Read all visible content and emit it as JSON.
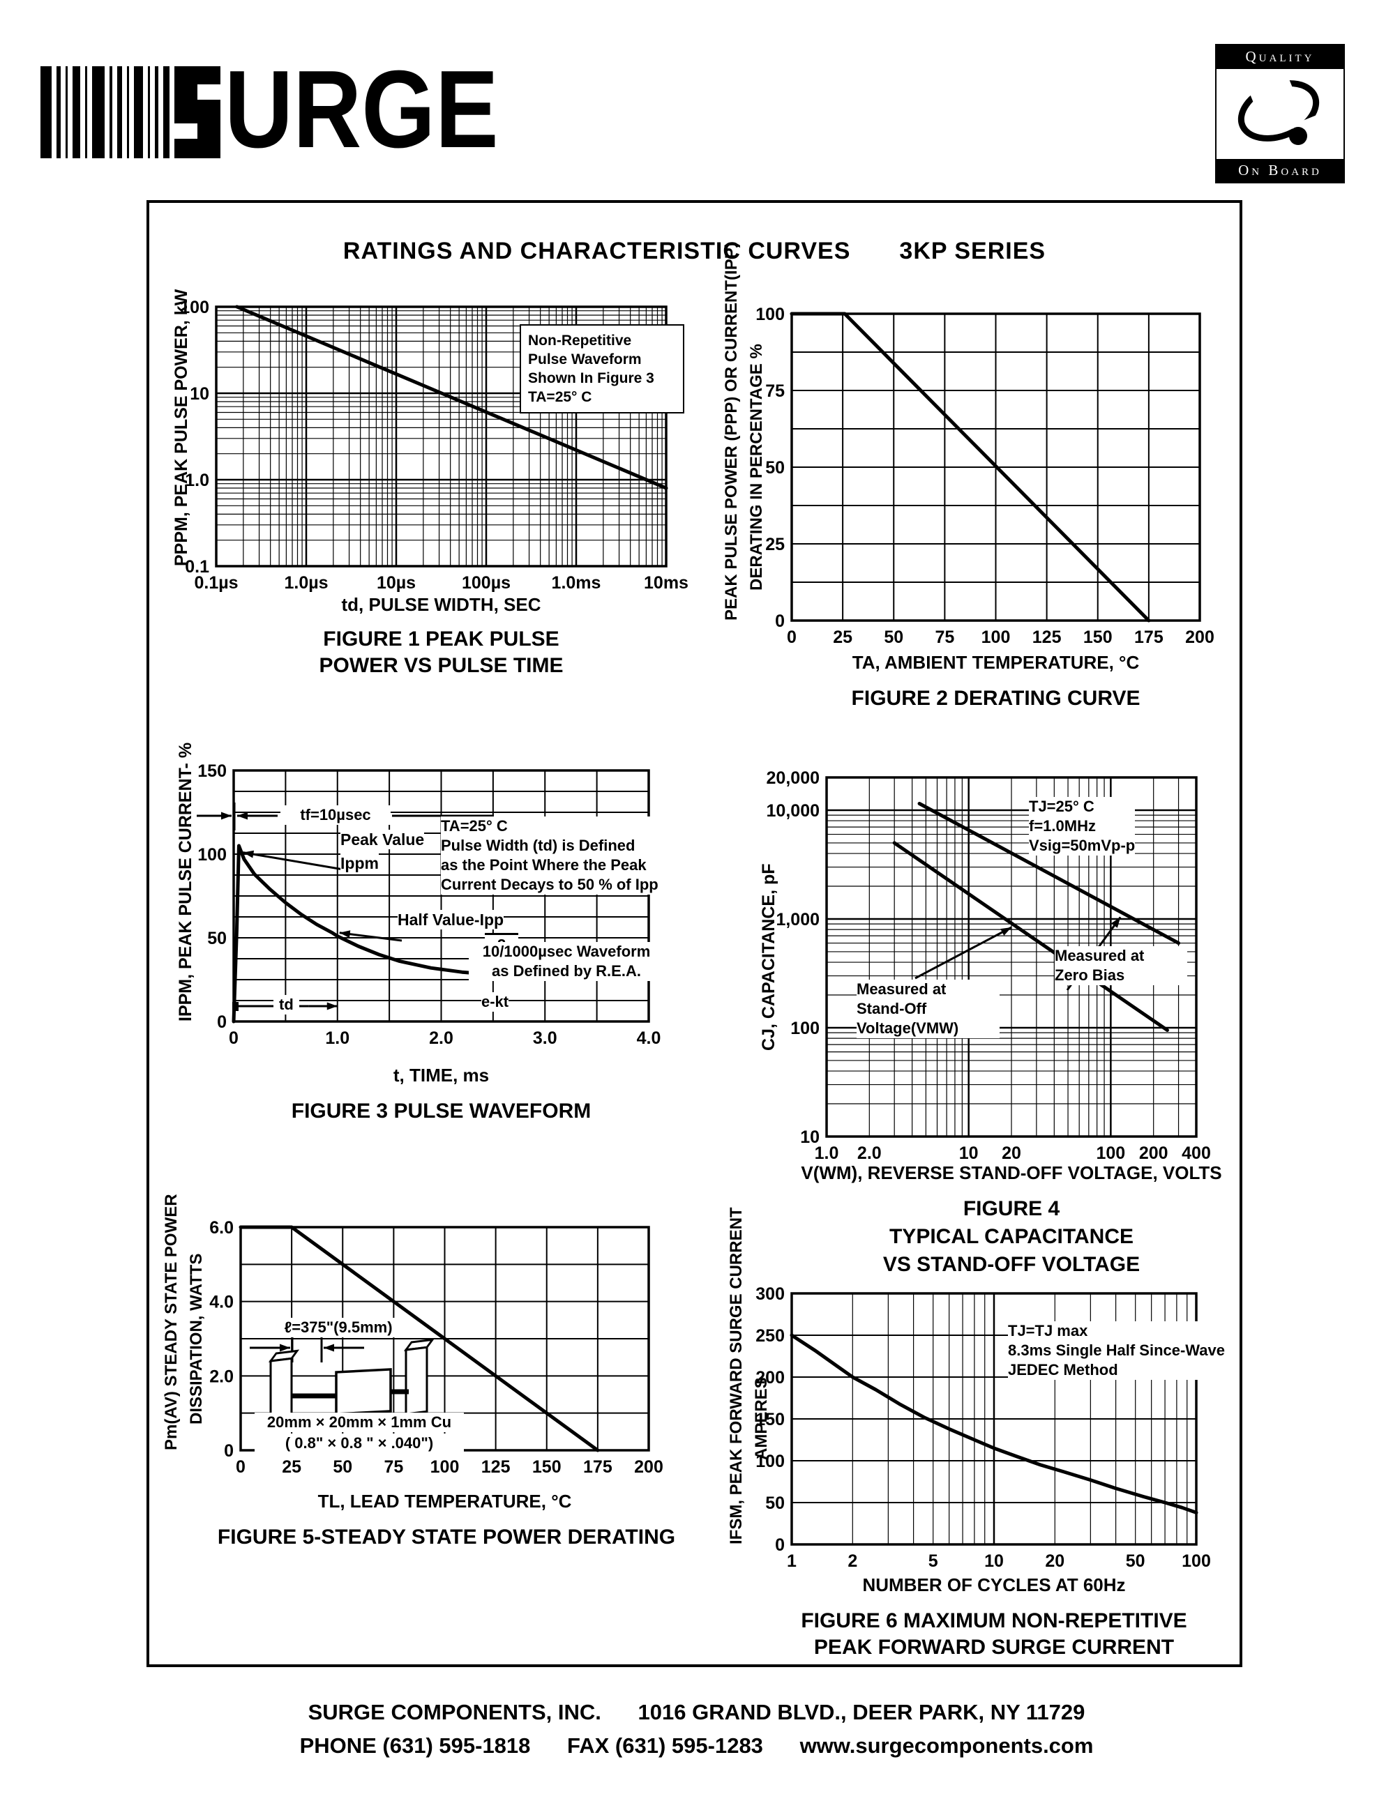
{
  "page": {
    "logo_text": "URGE",
    "quality_logo": {
      "top": "Quality",
      "bottom": "On Board"
    },
    "title": "RATINGS AND CHARACTERISTIC CURVES",
    "series_title": "3KP SERIES",
    "footer": {
      "company": "SURGE COMPONENTS, INC.",
      "address": "1016 GRAND BLVD., DEER PARK, NY  11729",
      "phone": "PHONE (631) 595-1818",
      "fax": "FAX (631) 595-1283",
      "web": "www.surgecomponents.com"
    }
  },
  "chart_data": [
    {
      "id": "figure1",
      "type": "line",
      "captions": [
        "FIGURE 1 PEAK PULSE",
        "POWER VS PULSE TIME"
      ],
      "xlabel": "td, PULSE WIDTH, SEC",
      "ylabel": "PPPM, PEAK PULSE POWER, kW",
      "x_axis": {
        "scale": "log",
        "min": 1e-07,
        "max": 0.01,
        "ticks": [
          {
            "v": 1e-07,
            "label": "0.1µs"
          },
          {
            "v": 1e-06,
            "label": "1.0µs"
          },
          {
            "v": 1e-05,
            "label": "10µs"
          },
          {
            "v": 0.0001,
            "label": "100µs"
          },
          {
            "v": 0.001,
            "label": "1.0ms"
          },
          {
            "v": 0.01,
            "label": "10ms"
          }
        ]
      },
      "y_axis": {
        "scale": "log",
        "min": 0.1,
        "max": 100,
        "ticks": [
          {
            "v": 100,
            "label": "100"
          },
          {
            "v": 10,
            "label": "10"
          },
          {
            "v": 1,
            "label": "1.0"
          },
          {
            "v": 0.1,
            "label": "0.1"
          }
        ]
      },
      "series": [
        {
          "name": "peak pulse power",
          "points": [
            [
              1.7e-07,
              100
            ],
            [
              0.01,
              0.8
            ]
          ]
        }
      ],
      "legend": [
        "Non-Repetitive",
        "Pulse Waveform",
        "Shown In Figure 3",
        "TA=25° C"
      ]
    },
    {
      "id": "figure2",
      "type": "line",
      "captions": [
        "FIGURE 2 DERATING CURVE"
      ],
      "xlabel": "TA, AMBIENT  TEMPERATURE, °C",
      "ylabel_lines": [
        "PEAK PULSE POWER (PPP) OR CURRENT(IPP)",
        "DERATING IN PERCENTAGE %"
      ],
      "x_axis": {
        "scale": "linear",
        "min": 0,
        "max": 200,
        "grid_step": 25,
        "ticks": [
          {
            "v": 0,
            "label": "0"
          },
          {
            "v": 25,
            "label": "25"
          },
          {
            "v": 50,
            "label": "50"
          },
          {
            "v": 75,
            "label": "75"
          },
          {
            "v": 100,
            "label": "100"
          },
          {
            "v": 125,
            "label": "125"
          },
          {
            "v": 150,
            "label": "150"
          },
          {
            "v": 175,
            "label": "175"
          },
          {
            "v": 200,
            "label": "200"
          }
        ]
      },
      "y_axis": {
        "scale": "linear",
        "min": 0,
        "max": 100,
        "grid_step": 12.5,
        "ticks": [
          {
            "v": 0,
            "label": "0"
          },
          {
            "v": 25,
            "label": "25"
          },
          {
            "v": 50,
            "label": "50"
          },
          {
            "v": 75,
            "label": "75"
          },
          {
            "v": 100,
            "label": "100"
          }
        ]
      },
      "series": [
        {
          "name": "derating",
          "points": [
            [
              0,
              100
            ],
            [
              26,
              100
            ],
            [
              175,
              0
            ]
          ]
        }
      ]
    },
    {
      "id": "figure3",
      "type": "line",
      "captions": [
        "FIGURE 3  PULSE WAVEFORM"
      ],
      "xlabel": "t, TIME, ms",
      "ylabel": "IPPM, PEAK PULSE CURRENT- %",
      "x_axis": {
        "scale": "linear",
        "min": 0,
        "max": 4,
        "grid_step": 0.5,
        "ticks": [
          {
            "v": 0,
            "label": "0"
          },
          {
            "v": 1,
            "label": "1.0"
          },
          {
            "v": 2,
            "label": "2.0"
          },
          {
            "v": 3,
            "label": "3.0"
          },
          {
            "v": 4,
            "label": "4.0"
          }
        ]
      },
      "y_axis": {
        "scale": "linear",
        "min": 0,
        "max": 150,
        "grid_step": 12.5,
        "ticks": [
          {
            "v": 0,
            "label": "0"
          },
          {
            "v": 50,
            "label": "50"
          },
          {
            "v": 100,
            "label": "100"
          },
          {
            "v": 150,
            "label": "150"
          }
        ]
      },
      "series": [
        {
          "name": "pulse waveform",
          "points": [
            [
              0,
              0
            ],
            [
              0.03,
              55
            ],
            [
              0.05,
              105
            ],
            [
              0.1,
              97
            ],
            [
              0.2,
              88
            ],
            [
              0.35,
              79
            ],
            [
              0.5,
              71
            ],
            [
              0.65,
              64
            ],
            [
              0.8,
              58
            ],
            [
              0.95,
              53
            ],
            [
              1.0,
              51
            ],
            [
              1.2,
              45
            ],
            [
              1.4,
              40
            ],
            [
              1.6,
              36
            ],
            [
              1.9,
              32
            ],
            [
              2.2,
              29.5
            ],
            [
              2.5,
              28
            ],
            [
              2.8,
              27.5
            ],
            [
              3.0,
              27.5
            ]
          ]
        }
      ],
      "annotations": {
        "tf": "tf=10µsec",
        "peak1": "Peak Value",
        "peak2": "Ippm",
        "half1": "Half Value-Ipp",
        "half2": "2",
        "note": [
          "TA=25° C",
          "Pulse Width (td) is Defined",
          "as the Point Where the Peak",
          "Current Decays to 50 % of Ipp"
        ],
        "rea": [
          "10/1000µsec Waveform",
          "as Defined by R.E.A."
        ],
        "ekt": "e-kt",
        "td": "td"
      }
    },
    {
      "id": "figure4",
      "type": "line",
      "captions": [
        "FIGURE 4",
        "TYPICAL CAPACITANCE",
        "VS STAND-OFF VOLTAGE"
      ],
      "xlabel": "V(WM), REVERSE STAND-OFF VOLTAGE, VOLTS",
      "ylabel": "CJ, CAPACITANCE, pF",
      "x_axis": {
        "scale": "log",
        "min": 1,
        "max": 400,
        "ticks": [
          {
            "v": 1,
            "label": "1.0"
          },
          {
            "v": 2,
            "label": "2.0"
          },
          {
            "v": 10,
            "label": "10"
          },
          {
            "v": 20,
            "label": "20"
          },
          {
            "v": 100,
            "label": "100"
          },
          {
            "v": 200,
            "label": "200"
          },
          {
            "v": 400,
            "label": "400"
          }
        ]
      },
      "y_axis": {
        "scale": "log",
        "min": 10,
        "max": 20000,
        "ticks": [
          {
            "v": 20000,
            "label": "20,000"
          },
          {
            "v": 10000,
            "label": "10,000"
          },
          {
            "v": 1000,
            "label": "1,000"
          },
          {
            "v": 100,
            "label": "100"
          },
          {
            "v": 10,
            "label": "10"
          }
        ]
      },
      "series": [
        {
          "name": "measured at zero bias",
          "points": [
            [
              4.5,
              11500
            ],
            [
              300,
              600
            ]
          ]
        },
        {
          "name": "measured at stand-off voltage",
          "points": [
            [
              3,
              5000
            ],
            [
              250,
              95
            ]
          ]
        }
      ],
      "annotations": {
        "cond": [
          "TJ=25° C",
          "f=1.0MHz",
          "Vsig=50mVp-p"
        ],
        "zero": [
          "Measured at",
          "Zero Bias"
        ],
        "standoff": [
          "Measured at",
          "Stand-Off",
          "Voltage(VMW)"
        ]
      }
    },
    {
      "id": "figure5",
      "type": "line",
      "captions": [
        "FIGURE 5-STEADY STATE POWER DERATING"
      ],
      "xlabel": "TL, LEAD  TEMPERATURE, °C",
      "ylabel_lines": [
        "Pm(AV) STEADY STATE POWER",
        "DISSIPATION, WATTS"
      ],
      "x_axis": {
        "scale": "linear",
        "min": 0,
        "max": 200,
        "grid_step": 25,
        "ticks": [
          {
            "v": 0,
            "label": "0"
          },
          {
            "v": 25,
            "label": "25"
          },
          {
            "v": 50,
            "label": "50"
          },
          {
            "v": 75,
            "label": "75"
          },
          {
            "v": 100,
            "label": "100"
          },
          {
            "v": 125,
            "label": "125"
          },
          {
            "v": 150,
            "label": "150"
          },
          {
            "v": 175,
            "label": "175"
          },
          {
            "v": 200,
            "label": "200"
          }
        ]
      },
      "y_axis": {
        "scale": "linear",
        "min": 0,
        "max": 6,
        "grid_step": 1,
        "ticks": [
          {
            "v": 0,
            "label": "0"
          },
          {
            "v": 2,
            "label": "2.0"
          },
          {
            "v": 4,
            "label": "4.0"
          },
          {
            "v": 6,
            "label": "6.0"
          }
        ]
      },
      "series": [
        {
          "name": "steady state power",
          "points": [
            [
              0,
              6
            ],
            [
              25,
              6
            ],
            [
              175,
              0
            ]
          ]
        }
      ],
      "annotations": {
        "len": "ℓ=375\"(9.5mm)",
        "cu1": "20mm × 20mm × 1mm Cu",
        "cu2": "( 0.8\" × 0.8 \" × .040\")"
      }
    },
    {
      "id": "figure6",
      "type": "line",
      "captions": [
        "FIGURE 6  MAXIMUM NON-REPETITIVE",
        "PEAK FORWARD SURGE CURRENT"
      ],
      "xlabel": "NUMBER  OF  CYCLES  AT  60Hz",
      "ylabel_lines": [
        "IFSM, PEAK FORWARD SURGE CURRENT",
        "AMPERES"
      ],
      "x_axis": {
        "scale": "log",
        "min": 1,
        "max": 100,
        "ticks": [
          {
            "v": 1,
            "label": "1"
          },
          {
            "v": 2,
            "label": "2"
          },
          {
            "v": 5,
            "label": "5"
          },
          {
            "v": 10,
            "label": "10"
          },
          {
            "v": 20,
            "label": "20"
          },
          {
            "v": 50,
            "label": "50"
          },
          {
            "v": 100,
            "label": "100"
          }
        ]
      },
      "y_axis": {
        "scale": "linear",
        "min": 0,
        "max": 300,
        "grid_step": 50,
        "ticks": [
          {
            "v": 0,
            "label": "0"
          },
          {
            "v": 50,
            "label": "50"
          },
          {
            "v": 100,
            "label": "100"
          },
          {
            "v": 150,
            "label": "150"
          },
          {
            "v": 200,
            "label": "200"
          },
          {
            "v": 250,
            "label": "250"
          },
          {
            "v": 300,
            "label": "300"
          }
        ]
      },
      "series": [
        {
          "name": "peak forward surge current",
          "points": [
            [
              1,
              250
            ],
            [
              1.3,
              232
            ],
            [
              1.7,
              212
            ],
            [
              2,
              200
            ],
            [
              2.6,
              185
            ],
            [
              3.4,
              168
            ],
            [
              4.5,
              152
            ],
            [
              6,
              138
            ],
            [
              8,
              125
            ],
            [
              10,
              115
            ],
            [
              13,
              105
            ],
            [
              17,
              95
            ],
            [
              22,
              87
            ],
            [
              30,
              77
            ],
            [
              40,
              67
            ],
            [
              55,
              57
            ],
            [
              70,
              50
            ],
            [
              85,
              44
            ],
            [
              100,
              38
            ]
          ]
        }
      ],
      "legend": [
        "TJ=TJ max",
        "8.3ms Single Half Since-Wave",
        "JEDEC Method"
      ]
    }
  ]
}
